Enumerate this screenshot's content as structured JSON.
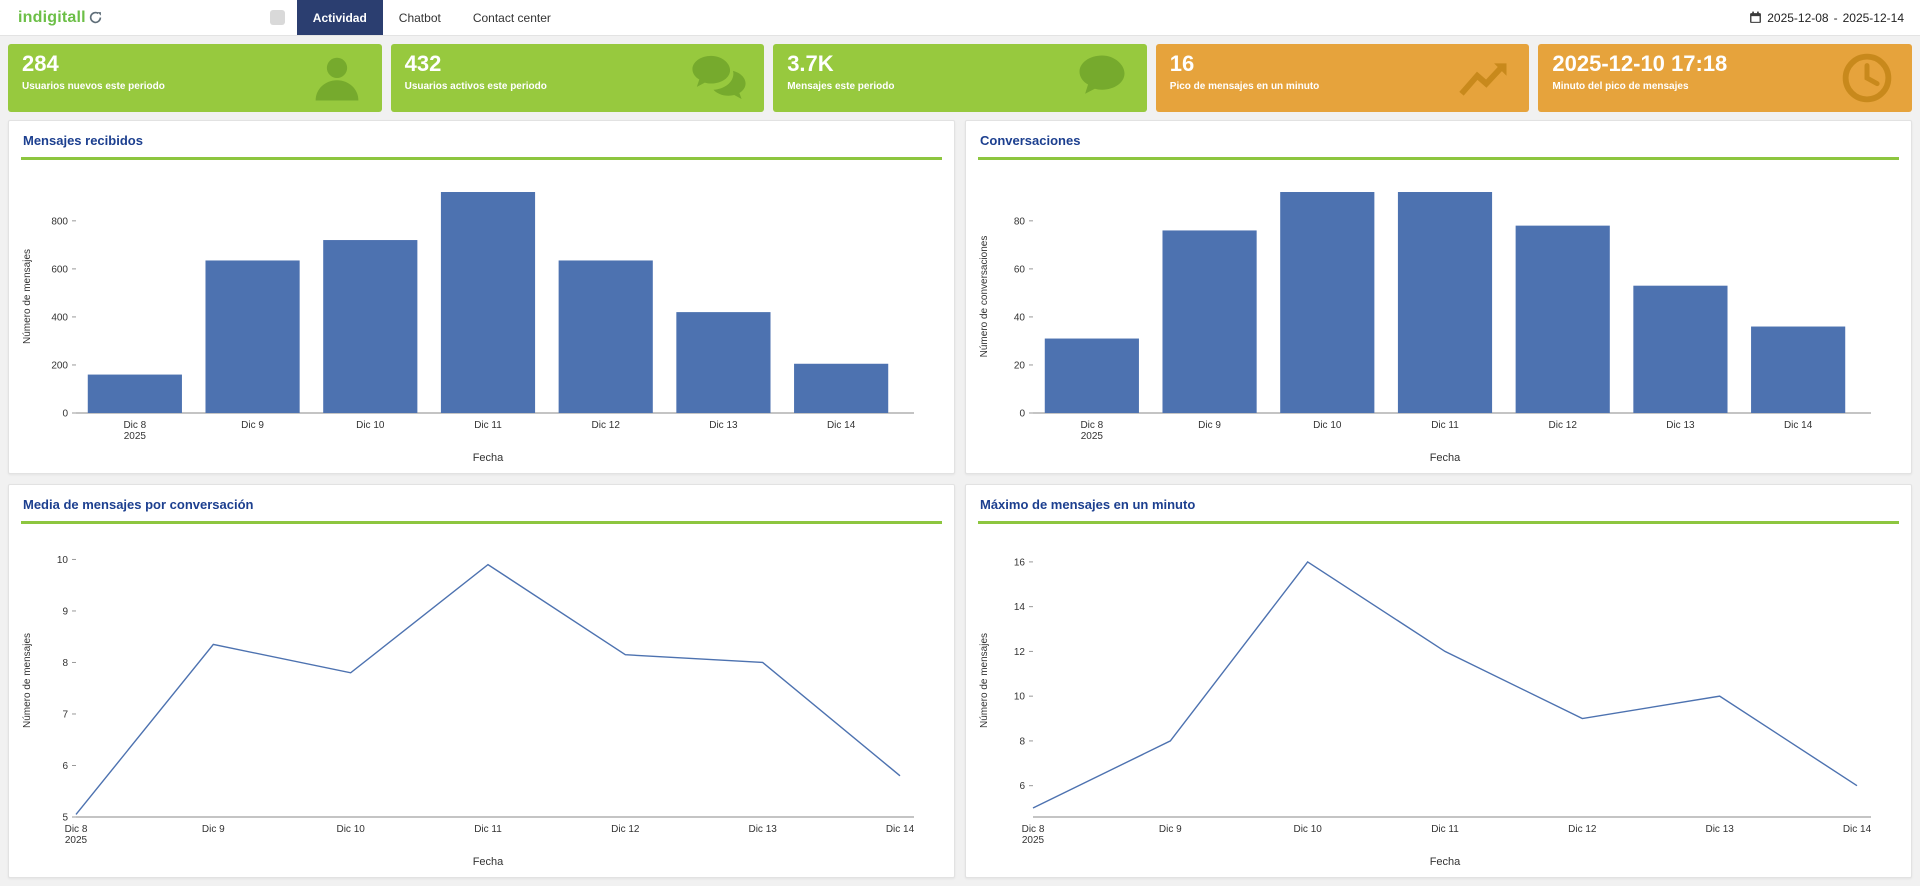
{
  "topbar": {
    "logo": "indigitall",
    "tabs": [
      {
        "label": "Actividad",
        "active": true
      },
      {
        "label": "Chatbot",
        "active": false
      },
      {
        "label": "Contact center",
        "active": false
      }
    ],
    "date_range": {
      "start": "2025-12-08",
      "separator": "-",
      "end": "2025-12-14"
    }
  },
  "colors": {
    "brand_green": "#8dc63f",
    "kpi_green": "#97c93e",
    "kpi_orange": "#e6a33c",
    "tab_active": "#2b3e70",
    "chart_title_blue": "#1c3f8f",
    "series_blue": "#4d72b0"
  },
  "kpis": [
    {
      "value": "284",
      "label": "Usuarios nuevos este periodo",
      "icon": "user-icon",
      "color": "#97c93e"
    },
    {
      "value": "432",
      "label": "Usuarios activos este periodo",
      "icon": "chat-bubbles-icon",
      "color": "#97c93e"
    },
    {
      "value": "3.7K",
      "label": "Mensajes este periodo",
      "icon": "chat-bubble-icon",
      "color": "#97c93e"
    },
    {
      "value": "16",
      "label": "Pico de mensajes en un minuto",
      "icon": "line-chart-icon",
      "color": "#e6a33c"
    },
    {
      "value": "2025-12-10 17:18",
      "label": "Minuto del pico de mensajes",
      "icon": "clock-icon",
      "color": "#e6a33c"
    }
  ],
  "chart_data": [
    {
      "type": "bar",
      "title": "Mensajes recibidos",
      "categories": [
        "Dic 8\n2025",
        "Dic 9",
        "Dic 10",
        "Dic 11",
        "Dic 12",
        "Dic 13",
        "Dic 14"
      ],
      "values": [
        160,
        635,
        720,
        920,
        635,
        420,
        205
      ],
      "xlabel": "Fecha",
      "ylabel": "Número de mensajes",
      "ylim": [
        0,
        970
      ],
      "yticks": [
        0,
        200,
        400,
        600,
        800
      ],
      "grid": false,
      "color": "#4d72b0"
    },
    {
      "type": "bar",
      "title": "Conversaciones",
      "categories": [
        "Dic 8\n2025",
        "Dic 9",
        "Dic 10",
        "Dic 11",
        "Dic 12",
        "Dic 13",
        "Dic 14"
      ],
      "values": [
        31,
        76,
        92,
        92,
        78,
        53,
        36
      ],
      "xlabel": "Fecha",
      "ylabel": "Número de conversaciones",
      "ylim": [
        0,
        97
      ],
      "yticks": [
        0,
        20,
        40,
        60,
        80
      ],
      "grid": false,
      "color": "#4d72b0"
    },
    {
      "type": "line",
      "title": "Media de mensajes por conversación",
      "categories": [
        "Dic 8\n2025",
        "Dic 9",
        "Dic 10",
        "Dic 11",
        "Dic 12",
        "Dic 13",
        "Dic 14"
      ],
      "values": [
        5.05,
        8.35,
        7.8,
        9.9,
        8.15,
        8.0,
        5.8
      ],
      "xlabel": "Fecha",
      "ylabel": "Número de mensajes",
      "ylim": [
        5,
        10.3
      ],
      "yticks": [
        5,
        6,
        7,
        8,
        9,
        10
      ],
      "grid": false,
      "color": "#4d72b0"
    },
    {
      "type": "line",
      "title": "Máximo de mensajes en un minuto",
      "categories": [
        "Dic 8\n2025",
        "Dic 9",
        "Dic 10",
        "Dic 11",
        "Dic 12",
        "Dic 13",
        "Dic 14"
      ],
      "values": [
        5,
        8,
        16,
        12,
        9,
        10,
        6
      ],
      "xlabel": "Fecha",
      "ylabel": "Número de mensajes",
      "ylim": [
        4.6,
        16.8
      ],
      "yticks": [
        6,
        8,
        10,
        12,
        14,
        16
      ],
      "grid": false,
      "color": "#4d72b0"
    }
  ]
}
